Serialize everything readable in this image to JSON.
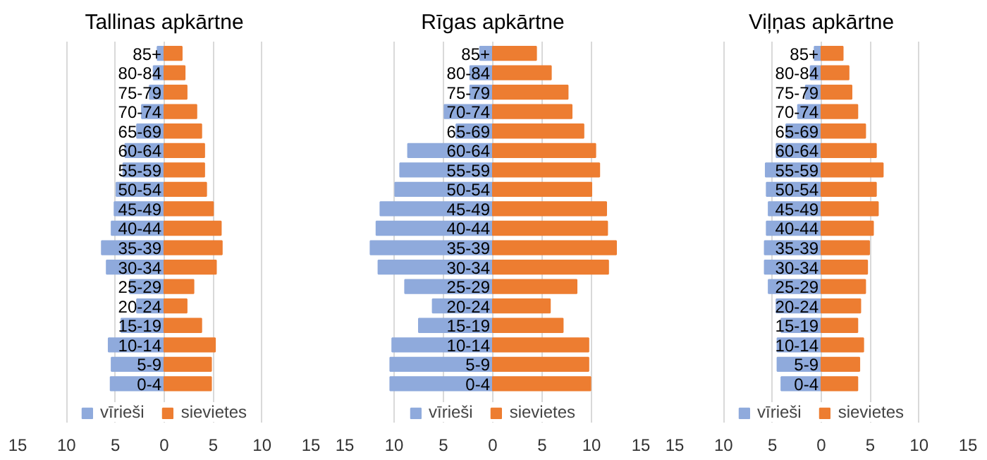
{
  "chart_data": [
    {
      "type": "bar",
      "orientation": "horizontal",
      "title": "Tallinas apkārtne",
      "categories": [
        "85+",
        "80-84",
        "75-79",
        "70-74",
        "65-69",
        "60-64",
        "55-59",
        "50-54",
        "45-49",
        "40-44",
        "35-39",
        "30-34",
        "25-29",
        "20-24",
        "15-19",
        "10-14",
        "5-9",
        "0-4"
      ],
      "series": [
        {
          "name": "vīrieši",
          "color": "#8faadc",
          "values": [
            -0.7,
            -1.1,
            -1.5,
            -2.3,
            -2.8,
            -4.0,
            -4.2,
            -4.9,
            -5.1,
            -5.4,
            -6.4,
            -5.9,
            -3.5,
            -2.8,
            -4.4,
            -5.7,
            -5.4,
            -5.5
          ]
        },
        {
          "name": "sievietes",
          "color": "#ed7d31",
          "values": [
            1.8,
            2.1,
            2.3,
            3.3,
            3.8,
            4.1,
            4.1,
            4.3,
            5.0,
            5.8,
            5.9,
            5.3,
            3.0,
            2.3,
            3.8,
            5.2,
            4.8,
            4.8
          ]
        }
      ],
      "xlim": [
        -15,
        15
      ],
      "xticks": [
        {
          "value": -15,
          "label": "15"
        },
        {
          "value": -10,
          "label": "10"
        },
        {
          "value": -5,
          "label": "5"
        },
        0,
        5,
        10,
        15
      ],
      "grid": "x",
      "legend": "bottom",
      "stacked": true
    },
    {
      "type": "bar",
      "orientation": "horizontal",
      "title": "Rīgas apkārtne",
      "categories": [
        "85+",
        "80-84",
        "75-79",
        "70-74",
        "65-69",
        "60-64",
        "55-59",
        "50-54",
        "45-49",
        "40-44",
        "35-39",
        "30-34",
        "25-29",
        "20-24",
        "15-19",
        "10-14",
        "5-9",
        "0-4"
      ],
      "series": [
        {
          "name": "vīrieši",
          "color": "#8faadc",
          "values": [
            -1.3,
            -2.3,
            -2.3,
            -4.9,
            -3.7,
            -8.6,
            -9.4,
            -9.9,
            -11.4,
            -11.8,
            -12.4,
            -11.6,
            -8.9,
            -6.1,
            -7.5,
            -10.2,
            -10.4,
            -10.4
          ]
        },
        {
          "name": "sievietes",
          "color": "#ed7d31",
          "values": [
            4.4,
            5.9,
            7.6,
            8.0,
            9.2,
            10.4,
            10.8,
            10.0,
            11.5,
            11.6,
            12.5,
            11.7,
            8.5,
            5.8,
            7.1,
            9.7,
            9.7,
            9.9
          ]
        }
      ],
      "xlim": [
        -15,
        15
      ],
      "xticks": [
        {
          "value": -15,
          "label": "15"
        },
        {
          "value": -10,
          "label": "10"
        },
        {
          "value": -5,
          "label": "5"
        },
        0,
        5,
        10,
        15
      ],
      "grid": "x",
      "legend": "bottom",
      "stacked": true
    },
    {
      "type": "bar",
      "orientation": "horizontal",
      "title": "Viļņas apkārtne",
      "categories": [
        "85+",
        "80-84",
        "75-79",
        "70-74",
        "65-69",
        "60-64",
        "55-59",
        "50-54",
        "45-49",
        "40-44",
        "35-39",
        "30-34",
        "25-29",
        "20-24",
        "15-19",
        "10-14",
        "5-9",
        "0-4"
      ],
      "series": [
        {
          "name": "vīrieši",
          "color": "#8faadc",
          "values": [
            -0.7,
            -1.1,
            -1.6,
            -2.4,
            -3.6,
            -4.6,
            -5.7,
            -5.6,
            -5.4,
            -5.6,
            -5.8,
            -5.8,
            -5.4,
            -4.6,
            -4.1,
            -4.5,
            -4.5,
            -4.1
          ]
        },
        {
          "name": "sievietes",
          "color": "#ed7d31",
          "values": [
            2.2,
            2.8,
            3.1,
            3.7,
            4.5,
            5.6,
            6.3,
            5.6,
            5.8,
            5.3,
            4.9,
            4.7,
            4.5,
            4.0,
            3.7,
            4.3,
            3.9,
            3.7
          ]
        }
      ],
      "xlim": [
        -15,
        15
      ],
      "xticks": [
        {
          "value": -15,
          "label": "15"
        },
        {
          "value": -10,
          "label": "10"
        },
        {
          "value": -5,
          "label": "5"
        },
        0,
        5,
        10,
        15
      ],
      "grid": "x",
      "legend": "bottom",
      "stacked": true
    }
  ]
}
